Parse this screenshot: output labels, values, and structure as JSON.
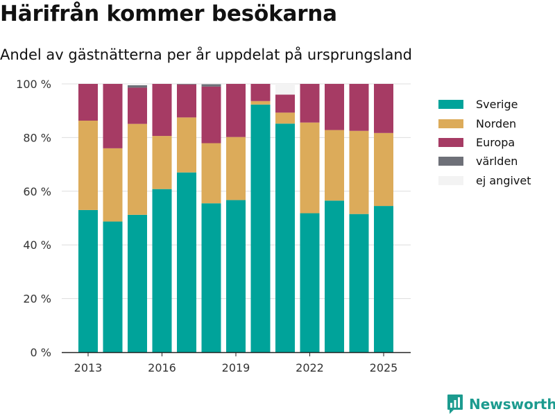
{
  "header": {
    "title": "Härifrån kommer besökarna",
    "subtitle": "Andel av gästnätterna per år uppdelat på ursprungsland"
  },
  "brand": {
    "name": "Newsworthy",
    "color": "#1c9b8f"
  },
  "chart_data": {
    "type": "bar",
    "stacked": true,
    "title": "Härifrån kommer besökarna",
    "subtitle": "Andel av gästnätterna per år uppdelat på ursprungsland",
    "xlabel": "",
    "ylabel": "",
    "ylim": [
      0,
      100
    ],
    "y_ticks": [
      0,
      20,
      40,
      60,
      80,
      100
    ],
    "y_tick_labels": [
      "0 %",
      "20 %",
      "40 %",
      "60 %",
      "80 %",
      "100 %"
    ],
    "x_ticks": [
      2013,
      2016,
      2019,
      2022,
      2025
    ],
    "x_tick_labels": [
      "2013",
      "2016",
      "2019",
      "2022",
      "2025"
    ],
    "grid": true,
    "legend_position": "right",
    "categories": [
      2013,
      2014,
      2015,
      2016,
      2017,
      2018,
      2019,
      2020,
      2021,
      2022,
      2023,
      2024,
      2025
    ],
    "series": [
      {
        "name": "Sverige",
        "color": "#00a39a",
        "values": [
          53,
          48.7,
          51.2,
          60.8,
          67,
          55.5,
          56.7,
          92.3,
          85.2,
          51.8,
          56.5,
          51.5,
          54.5
        ]
      },
      {
        "name": "Norden",
        "color": "#dcab5a",
        "values": [
          33.3,
          27.3,
          33.9,
          19.8,
          20.5,
          22.4,
          23.5,
          1.3,
          4.1,
          33.8,
          26.3,
          31.0,
          27.2
        ]
      },
      {
        "name": "Europa",
        "color": "#a63b64",
        "values": [
          13.7,
          24,
          13.5,
          19.4,
          12.3,
          21.1,
          19.8,
          6.4,
          6.7,
          14.4,
          17.2,
          17.5,
          18.3
        ]
      },
      {
        "name": "världen",
        "color": "#6e7078",
        "values": [
          0,
          0,
          0.9,
          0,
          0.2,
          0.9,
          0,
          0,
          0,
          0,
          0,
          0,
          0
        ]
      },
      {
        "name": "ej angivet",
        "color": "#f3f3f3",
        "values": [
          0,
          0,
          0.5,
          0,
          0,
          0.1,
          0,
          0,
          4.0,
          0,
          0,
          0,
          0
        ]
      }
    ]
  }
}
